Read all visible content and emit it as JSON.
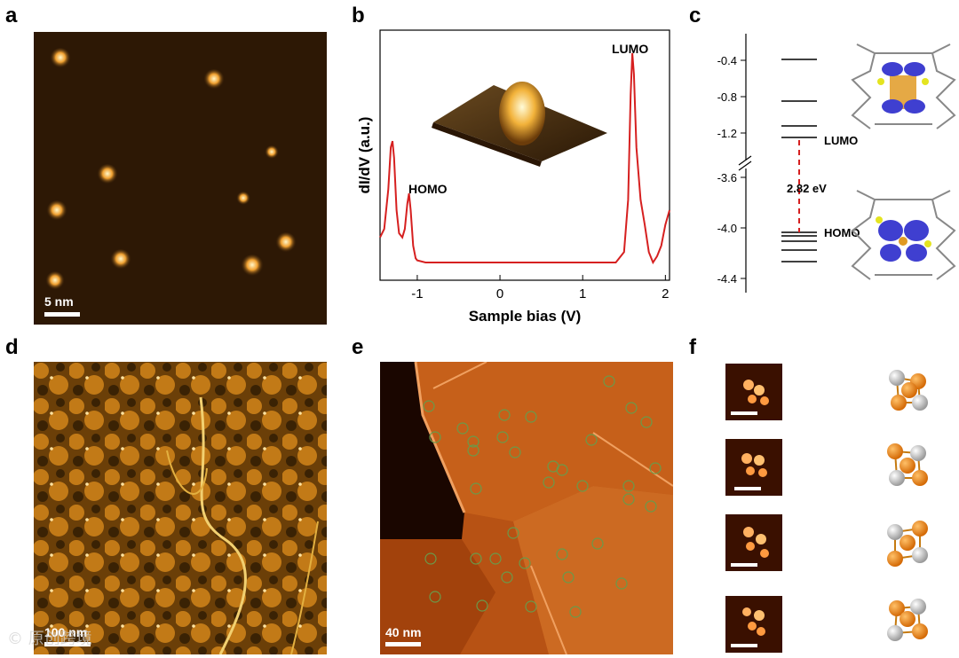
{
  "panels": {
    "a": {
      "label": "a",
      "scalebar": "5 nm"
    },
    "b": {
      "label": "b"
    },
    "c": {
      "label": "c",
      "lumo": "LUMO",
      "homo": "HOMO",
      "gap": "2.82 eV",
      "ticks": [
        "-0.4",
        "-0.8",
        "-1.2",
        "-3.6",
        "-4.0",
        "-4.4"
      ]
    },
    "d": {
      "label": "d",
      "scalebar": "100 nm"
    },
    "e": {
      "label": "e",
      "scalebar": "40 nm"
    },
    "f": {
      "label": "f"
    }
  },
  "chart_data": {
    "type": "line",
    "xlabel": "Sample bias (V)",
    "ylabel": "dI/dV (a.u.)",
    "xlim": [
      -1.45,
      2.05
    ],
    "xticks": [
      "-1",
      "0",
      "1",
      "2"
    ],
    "annotations": [
      "HOMO",
      "LUMO"
    ],
    "x": [
      -1.45,
      -1.4,
      -1.35,
      -1.32,
      -1.3,
      -1.28,
      -1.25,
      -1.22,
      -1.18,
      -1.15,
      -1.12,
      -1.1,
      -1.08,
      -1.05,
      -1.02,
      -1.0,
      -0.9,
      0.0,
      1.0,
      1.4,
      1.5,
      1.55,
      1.58,
      1.6,
      1.62,
      1.65,
      1.7,
      1.75,
      1.8,
      1.85,
      1.9,
      1.95,
      2.0,
      2.05
    ],
    "y": [
      0.12,
      0.16,
      0.35,
      0.55,
      0.58,
      0.5,
      0.25,
      0.14,
      0.12,
      0.16,
      0.28,
      0.33,
      0.25,
      0.08,
      0.02,
      0.01,
      0.0,
      0.0,
      0.0,
      0.0,
      0.05,
      0.3,
      0.8,
      1.0,
      0.9,
      0.55,
      0.3,
      0.18,
      0.05,
      0.0,
      0.03,
      0.08,
      0.18,
      0.25
    ],
    "color": "#d62020"
  },
  "watermark": "© 原创跨境"
}
